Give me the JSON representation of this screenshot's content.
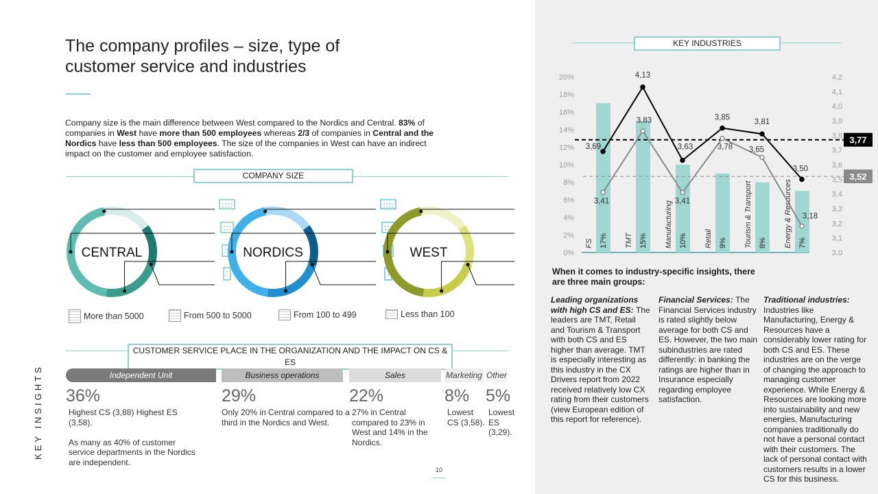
{
  "title": "The company profiles – size, type of customer service and industries",
  "intro": {
    "segments": [
      {
        "t": "Company size is the main difference between West compared to the Nordics and Central. ",
        "b": false
      },
      {
        "t": "83%",
        "b": true
      },
      {
        "t": " of companies in ",
        "b": false
      },
      {
        "t": "West",
        "b": true
      },
      {
        "t": " have ",
        "b": false
      },
      {
        "t": "more than 500 employees",
        "b": true
      },
      {
        "t": " whereas ",
        "b": false
      },
      {
        "t": "2/3",
        "b": true
      },
      {
        "t": " of companies in ",
        "b": false
      },
      {
        "t": "Central and the Nordics",
        "b": true
      },
      {
        "t": " have ",
        "b": false
      },
      {
        "t": "less than 500 employees",
        "b": true
      },
      {
        "t": ". The size of the companies in West can have an indirect impact on the customer and employee satisfaction.",
        "b": false
      }
    ]
  },
  "company_size": {
    "heading": "COMPANY SIZE",
    "donuts": [
      {
        "label": "CENTRAL",
        "colors": [
          "#5ebdb0",
          "#3a9c8f",
          "#1f7b72",
          "#d6edec"
        ]
      },
      {
        "label": "NORDICS",
        "colors": [
          "#3fb0e8",
          "#1f8fd0",
          "#0d5f8a",
          "#a9d9f5"
        ]
      },
      {
        "label": "WEST",
        "colors": [
          "#8d9a2a",
          "#c6cd4a",
          "#dde27a",
          "#eff1c8"
        ]
      }
    ],
    "legend": [
      {
        "label": "More than 5000",
        "icon": "building-large-icon"
      },
      {
        "label": "From 500 to 5000",
        "icon": "building-medium-icon"
      },
      {
        "label": "From 100 to 499",
        "icon": "building-small-icon"
      },
      {
        "label": "Less than 100",
        "icon": "building-tiny-icon"
      }
    ]
  },
  "cs_place": {
    "heading": "CUSTOMER SERVICE PLACE IN THE ORGANIZATION AND THE IMPACT ON CS & ES",
    "categories": [
      {
        "label": "Independent Unit",
        "pct": "36%",
        "desc": "Highest CS (3,88) Highest ES (3,58).\n\nAs many as 40% of customer service departments in the Nordics are independent.",
        "bg": "#7a7a7a",
        "fg": "#ffffff"
      },
      {
        "label": "Business operations",
        "pct": "29%",
        "desc": "Only 20% in Central compared to a third in the Nordics and West.",
        "bg": "#bdbdbd",
        "fg": "#222222"
      },
      {
        "label": "Sales",
        "pct": "22%",
        "desc": "27% in Central compared to 23% in West and 14% in the Nordics.",
        "bg": "#dcdcdc",
        "fg": "#222222"
      },
      {
        "label": "Marketing",
        "pct": "8%",
        "desc": "Lowest CS (3,58).",
        "bg": "#ededed",
        "fg": "#444444"
      },
      {
        "label": "Other",
        "pct": "5%",
        "desc": "Lowest ES (3,29).",
        "bg": "#f3f3f3",
        "fg": "#444444"
      }
    ]
  },
  "side_label": "KEY INSIGHTS",
  "page_number": "10",
  "key_industries": {
    "heading": "KEY INDUSTRIES",
    "chart_data": {
      "type": "bar",
      "categories": [
        "FS",
        "TMT",
        "Manufacturing",
        "Retail",
        "Tourism & Transport",
        "Energy & Resources"
      ],
      "bar_series": {
        "values": [
          17,
          15,
          10,
          9,
          8,
          7
        ],
        "labels": [
          "17%",
          "15%",
          "10%",
          "9%",
          "8%",
          "7%"
        ],
        "color": "#9fd8d3"
      },
      "y_left": {
        "ticks": [
          "0%",
          "2%",
          "4%",
          "6%",
          "8%",
          "10%",
          "12%",
          "14%",
          "16%",
          "18%",
          "20%"
        ],
        "range": [
          0,
          20
        ]
      },
      "y_right": {
        "ticks": [
          "3,0",
          "3,1",
          "3,2",
          "3,3",
          "3,4",
          "3,5",
          "3,6",
          "3,7",
          "3,8",
          "3,9",
          "4,0",
          "4,1",
          "4,2"
        ],
        "range": [
          3.0,
          4.2
        ]
      },
      "line_series": [
        {
          "values": [
            3.69,
            4.13,
            3.63,
            3.85,
            3.81,
            3.5
          ],
          "labels": [
            "3,69",
            "4,13",
            "3,63",
            "3,85",
            "3,81",
            "3,50"
          ],
          "color": "#000000"
        },
        {
          "values": [
            3.41,
            3.83,
            3.41,
            3.78,
            3.65,
            3.18
          ],
          "labels": [
            "3,41",
            "3,83",
            "3,41",
            "3,78",
            "3,65",
            "3,18"
          ],
          "color": "#8a8a8a"
        }
      ],
      "reference_lines": [
        {
          "value": 3.77,
          "label": "3,77",
          "color": "#000000"
        },
        {
          "value": 3.52,
          "label": "3,52",
          "color": "#8a8a8a"
        }
      ]
    }
  },
  "groups": {
    "heading": "When it comes to industry-specific insights, there are three main groups:",
    "columns": [
      {
        "title": "Leading organizations with high CS and ES:",
        "body": "The leaders are TMT, Retail and Tourism & Transport with both CS and ES higher than average. TMT is especially interesting as this industry in the CX Drivers report from 2022 received relatively low CX rating from their customers (view European edition of this report for reference)."
      },
      {
        "title": "Financial Services:",
        "body": "The Financial Services industry is rated slightly below average for both CS and ES. However, the two main subindustries are rated differently: in banking the ratings are higher than in Insurance especially regarding employee satisfaction."
      },
      {
        "title": "Traditional industries:",
        "body": "Industries like Manufacturing, Energy & Resources have a considerably lower rating for both CS and ES. These industries are on the verge of changing the approach to managing customer experience. While Energy & Resources are looking more into sustainability and new energies, Manufacturing companies traditionally do not have a personal contact with their customers. The lack of personal contact with customers results in a lower CS for this business."
      }
    ]
  }
}
